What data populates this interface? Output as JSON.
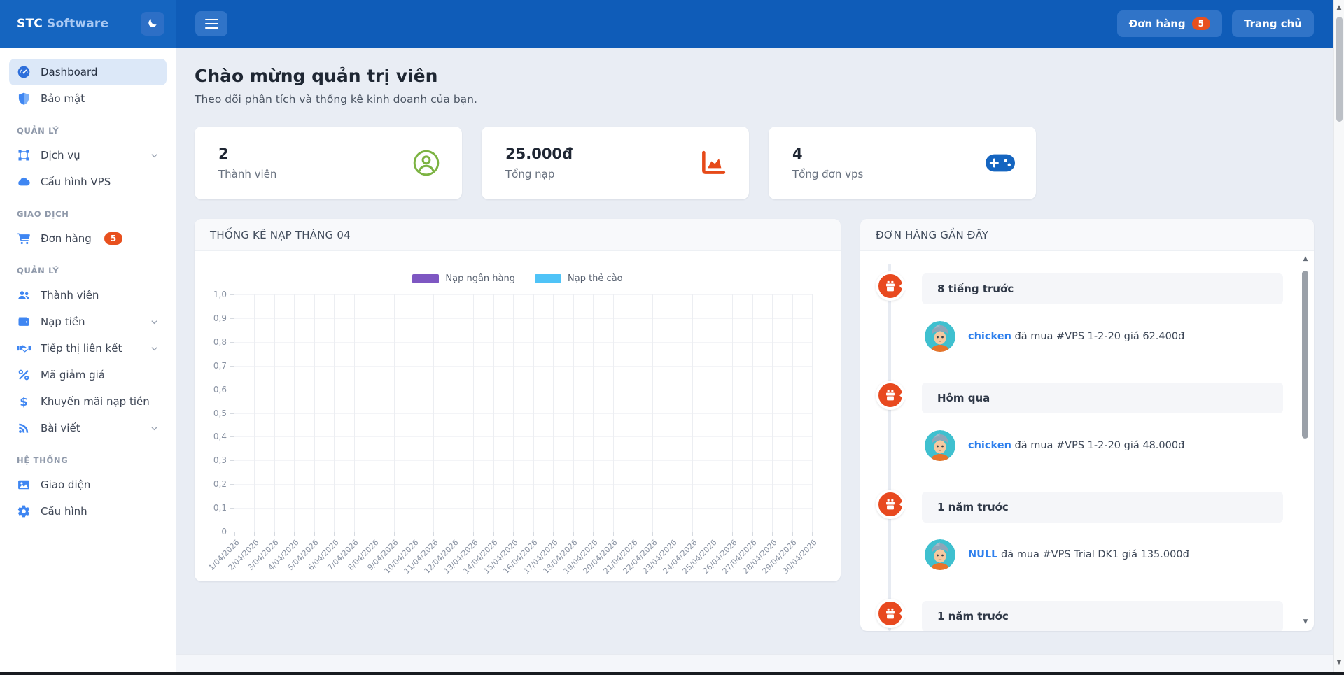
{
  "app": {
    "brand_primary": "STC",
    "brand_secondary": "Software"
  },
  "colors": {
    "navbar": "#0f5cb8",
    "sidebar_header": "#1565c0",
    "topbar_button": "#3074c8",
    "badge": "#e8501e",
    "accent": "#3f86f2",
    "link": "#2f80ed",
    "timeline": "#e8491f",
    "page_bg": "#e9edf4"
  },
  "navbar": {
    "orders_button": {
      "label": "Đơn hàng",
      "badge": "5"
    },
    "home_button": {
      "label": "Trang chủ"
    }
  },
  "sidebar": {
    "sections": [
      {
        "label": "",
        "items": [
          {
            "icon": "dashboard-icon",
            "label": "Dashboard",
            "active": true
          },
          {
            "icon": "shield-icon",
            "label": "Bảo mật"
          }
        ]
      },
      {
        "label": "QUẢN LÝ",
        "items": [
          {
            "icon": "vector-square-icon",
            "label": "Dịch vụ",
            "chevron": true
          },
          {
            "icon": "cloud-icon",
            "label": "Cấu hình VPS"
          }
        ]
      },
      {
        "label": "GIAO DỊCH",
        "items": [
          {
            "icon": "cart-icon",
            "label": "Đơn hàng",
            "badge": "5"
          }
        ]
      },
      {
        "label": "QUẢN LÝ",
        "items": [
          {
            "icon": "users-icon",
            "label": "Thành viên"
          },
          {
            "icon": "wallet-icon",
            "label": "Nạp tiền",
            "chevron": true
          },
          {
            "icon": "handshake-icon",
            "label": "Tiếp thị liên kết",
            "chevron": true
          },
          {
            "icon": "percent-icon",
            "label": "Mã giảm giá"
          },
          {
            "icon": "dollar-icon",
            "label": "Khuyến mãi nạp tiền"
          },
          {
            "icon": "blog-icon",
            "label": "Bài viết",
            "chevron": true
          }
        ]
      },
      {
        "label": "HỆ THỐNG",
        "items": [
          {
            "icon": "image-icon",
            "label": "Giao diện"
          },
          {
            "icon": "gear-icon",
            "label": "Cấu hình"
          }
        ]
      }
    ]
  },
  "welcome": {
    "title": "Chào mừng quản trị viên",
    "subtitle": "Theo dõi phân tích và thống kê kinh doanh của bạn."
  },
  "stats": [
    {
      "value": "2",
      "label": "Thành viên",
      "icon": "user-circle-icon",
      "color": "#7cb342"
    },
    {
      "value": "25.000đ",
      "label": "Tổng nạp",
      "icon": "chart-area-icon",
      "color": "#e64a19"
    },
    {
      "value": "4",
      "label": "Tổng đơn vps",
      "icon": "gamepad-icon",
      "color": "#1565c0"
    }
  ],
  "chart_data": {
    "type": "bar",
    "title": "THỐNG KÊ NẠP THÁNG 04",
    "categories": [
      "1/04/2026",
      "2/04/2026",
      "3/04/2026",
      "4/04/2026",
      "5/04/2026",
      "6/04/2026",
      "7/04/2026",
      "8/04/2026",
      "9/04/2026",
      "10/04/2026",
      "11/04/2026",
      "12/04/2026",
      "13/04/2026",
      "14/04/2026",
      "15/04/2026",
      "16/04/2026",
      "17/04/2026",
      "18/04/2026",
      "19/04/2026",
      "20/04/2026",
      "21/04/2026",
      "22/04/2026",
      "23/04/2026",
      "24/04/2026",
      "25/04/2026",
      "26/04/2026",
      "27/04/2026",
      "28/04/2026",
      "29/04/2026",
      "30/04/2026"
    ],
    "series": [
      {
        "name": "Nạp ngân hàng",
        "color": "#7e57c2",
        "values": [
          0,
          0,
          0,
          0,
          0,
          0,
          0,
          0,
          0,
          0,
          0,
          0,
          0,
          0,
          0,
          0,
          0,
          0,
          0,
          0,
          0,
          0,
          0,
          0,
          0,
          0,
          0,
          0,
          0,
          0
        ]
      },
      {
        "name": "Nạp thẻ cào",
        "color": "#4fc3f7",
        "values": [
          0,
          0,
          0,
          0,
          0,
          0,
          0,
          0,
          0,
          0,
          0,
          0,
          0,
          0,
          0,
          0,
          0,
          0,
          0,
          0,
          0,
          0,
          0,
          0,
          0,
          0,
          0,
          0,
          0,
          0
        ]
      }
    ],
    "ylim": [
      0,
      1.0
    ],
    "y_tick_labels": [
      "1,0",
      "0,9",
      "0,8",
      "0,7",
      "0,6",
      "0,5",
      "0,4",
      "0,3",
      "0,2",
      "0,1",
      "0"
    ],
    "x_tick_rotation": -45,
    "grid": true,
    "legend_position": "top"
  },
  "orders_panel": {
    "title": "ĐƠN HÀNG GẦN ĐÂY",
    "items": [
      {
        "time": "8 tiếng trước",
        "user": "chicken",
        "text": "đã mua #VPS 1-2-20 giá 62.400đ"
      },
      {
        "time": "Hôm qua",
        "user": "chicken",
        "text": "đã mua #VPS 1-2-20 giá 48.000đ"
      },
      {
        "time": "1 năm trước",
        "user": "NULL",
        "text": "đã mua #VPS Trial DK1 giá 135.000đ"
      },
      {
        "time": "1 năm trước"
      }
    ]
  },
  "scrollbar": {
    "up_arrow": "▲",
    "down_arrow": "▼"
  }
}
